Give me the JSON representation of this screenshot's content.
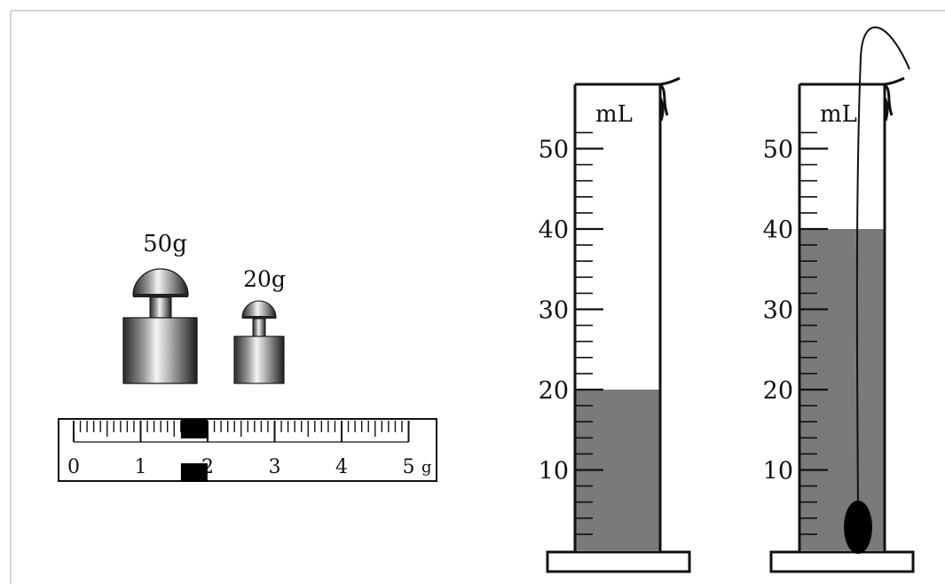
{
  "weights": [
    {
      "label": "50g"
    },
    {
      "label": "20g"
    }
  ],
  "rider_scale": {
    "ticks": [
      "0",
      "1",
      "2",
      "3",
      "4",
      "5"
    ],
    "unit": "g",
    "rider_value": 1.8
  },
  "cylinders": [
    {
      "unit_label": "mL",
      "tick_labels": [
        "10",
        "20",
        "30",
        "40",
        "50"
      ],
      "liquid_level": 20,
      "has_object": false
    },
    {
      "unit_label": "mL",
      "tick_labels": [
        "10",
        "20",
        "30",
        "40",
        "50"
      ],
      "liquid_level": 40,
      "has_object": true
    }
  ],
  "colors": {
    "liquid": "#7a7a7a",
    "outline": "#111111"
  }
}
